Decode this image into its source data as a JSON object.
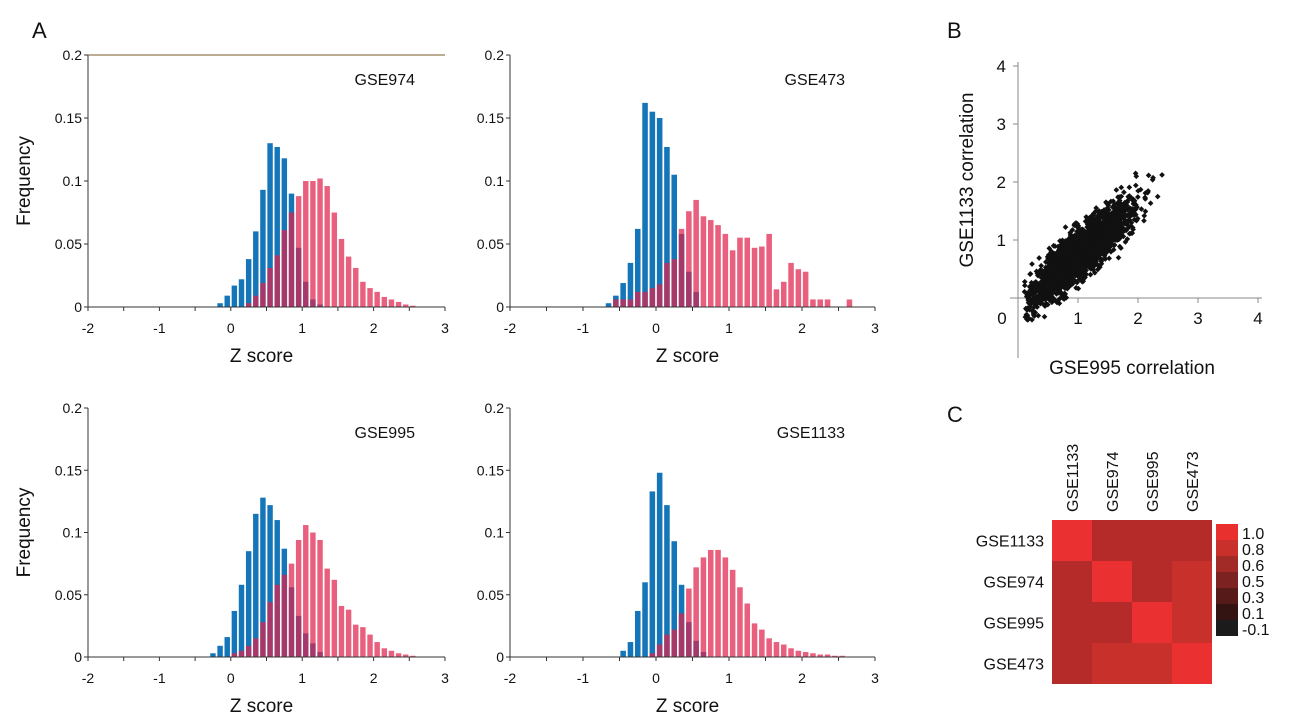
{
  "panel_letters": {
    "a": "A",
    "b": "B",
    "c": "C"
  },
  "colors": {
    "blue": "#1475b8",
    "red": "#e0234c",
    "overlap": "#6a3a72",
    "axis": "#333333",
    "point": "#111111"
  },
  "chart_data": [
    {
      "id": "hist-gse974",
      "type": "bar",
      "label": "GSE974",
      "xlabel": "Z score",
      "ylabel": "Frequency",
      "xlim": [
        -2,
        3
      ],
      "ylim": [
        0,
        0.2
      ],
      "xticks": [
        "-2",
        "-1",
        "0",
        "1",
        "2",
        "3"
      ],
      "yticks": [
        "0",
        "0.05",
        "0.1",
        "0.15",
        "0.2"
      ],
      "bin_width": 0.1,
      "series": [
        {
          "color": "blue",
          "x": [
            -0.15,
            -0.05,
            0.05,
            0.15,
            0.25,
            0.35,
            0.45,
            0.55,
            0.65,
            0.75,
            0.85,
            0.95,
            1.05,
            1.15,
            1.25
          ],
          "values": [
            0.003,
            0.009,
            0.017,
            0.022,
            0.038,
            0.06,
            0.093,
            0.13,
            0.127,
            0.118,
            0.09,
            0.047,
            0.02,
            0.006,
            0.002
          ]
        },
        {
          "color": "red",
          "x": [
            0.25,
            0.35,
            0.45,
            0.55,
            0.65,
            0.75,
            0.85,
            0.95,
            1.05,
            1.15,
            1.25,
            1.35,
            1.45,
            1.55,
            1.65,
            1.75,
            1.85,
            1.95,
            2.05,
            2.15,
            2.25,
            2.35,
            2.45,
            2.55
          ],
          "values": [
            0.003,
            0.009,
            0.019,
            0.031,
            0.041,
            0.061,
            0.075,
            0.088,
            0.1,
            0.1,
            0.102,
            0.096,
            0.075,
            0.054,
            0.04,
            0.031,
            0.02,
            0.015,
            0.012,
            0.008,
            0.006,
            0.004,
            0.002,
            0.001
          ]
        }
      ]
    },
    {
      "id": "hist-gse473",
      "type": "bar",
      "label": "GSE473",
      "xlabel": "Z score",
      "ylabel": "",
      "xlim": [
        -2,
        3
      ],
      "ylim": [
        0,
        0.2
      ],
      "xticks": [
        "-2",
        "-1",
        "0",
        "1",
        "2",
        "3"
      ],
      "yticks": [
        "0",
        "0.05",
        "0.1",
        "0.15",
        "0.2"
      ],
      "bin_width": 0.1,
      "series": [
        {
          "color": "blue",
          "x": [
            -0.65,
            -0.55,
            -0.45,
            -0.35,
            -0.25,
            -0.15,
            -0.05,
            0.05,
            0.15,
            0.25,
            0.35,
            0.45,
            0.55
          ],
          "values": [
            0.003,
            0.009,
            0.019,
            0.035,
            0.062,
            0.162,
            0.155,
            0.15,
            0.127,
            0.105,
            0.058,
            0.028,
            0.012
          ]
        },
        {
          "color": "red",
          "x": [
            -0.55,
            -0.45,
            -0.35,
            -0.25,
            -0.15,
            -0.05,
            0.05,
            0.15,
            0.25,
            0.35,
            0.45,
            0.55,
            0.65,
            0.75,
            0.85,
            0.95,
            1.05,
            1.15,
            1.25,
            1.35,
            1.45,
            1.55,
            1.65,
            1.75,
            1.85,
            1.95,
            2.05,
            2.15,
            2.25,
            2.35,
            2.65
          ],
          "values": [
            0.006,
            0.006,
            0.006,
            0.012,
            0.012,
            0.015,
            0.018,
            0.035,
            0.038,
            0.062,
            0.076,
            0.085,
            0.072,
            0.069,
            0.065,
            0.058,
            0.045,
            0.055,
            0.055,
            0.047,
            0.048,
            0.058,
            0.014,
            0.02,
            0.035,
            0.03,
            0.028,
            0.006,
            0.006,
            0.006,
            0.006
          ]
        }
      ]
    },
    {
      "id": "hist-gse995",
      "type": "bar",
      "label": "GSE995",
      "xlabel": "Z score",
      "ylabel": "Frequency",
      "xlim": [
        -2,
        3
      ],
      "ylim": [
        0,
        0.2
      ],
      "xticks": [
        "-2",
        "-1",
        "0",
        "1",
        "2",
        "3"
      ],
      "yticks": [
        "0",
        "0.05",
        "0.1",
        "0.15",
        "0.2"
      ],
      "bin_width": 0.1,
      "series": [
        {
          "color": "blue",
          "x": [
            -0.25,
            -0.15,
            -0.05,
            0.05,
            0.15,
            0.25,
            0.35,
            0.45,
            0.55,
            0.65,
            0.75,
            0.85,
            0.95,
            1.05,
            1.15,
            1.25
          ],
          "values": [
            0.003,
            0.009,
            0.016,
            0.037,
            0.058,
            0.085,
            0.115,
            0.128,
            0.122,
            0.11,
            0.087,
            0.056,
            0.033,
            0.019,
            0.011,
            0.004
          ]
        },
        {
          "color": "red",
          "x": [
            0.05,
            0.15,
            0.25,
            0.35,
            0.45,
            0.55,
            0.65,
            0.75,
            0.85,
            0.95,
            1.05,
            1.15,
            1.25,
            1.35,
            1.45,
            1.55,
            1.65,
            1.75,
            1.85,
            1.95,
            2.05,
            2.15,
            2.25,
            2.35,
            2.45,
            2.55
          ],
          "values": [
            0.003,
            0.005,
            0.009,
            0.015,
            0.028,
            0.044,
            0.058,
            0.066,
            0.075,
            0.094,
            0.106,
            0.1,
            0.094,
            0.071,
            0.062,
            0.041,
            0.038,
            0.026,
            0.024,
            0.018,
            0.012,
            0.007,
            0.005,
            0.003,
            0.002,
            0.001
          ]
        }
      ]
    },
    {
      "id": "hist-gse1133",
      "type": "bar",
      "label": "GSE1133",
      "xlabel": "Z score",
      "ylabel": "",
      "xlim": [
        -2,
        3
      ],
      "ylim": [
        0,
        0.2
      ],
      "xticks": [
        "-2",
        "-1",
        "0",
        "1",
        "2",
        "3"
      ],
      "yticks": [
        "0",
        "0.05",
        "0.1",
        "0.15",
        "0.2"
      ],
      "bin_width": 0.1,
      "series": [
        {
          "color": "blue",
          "x": [
            -0.45,
            -0.35,
            -0.25,
            -0.15,
            -0.05,
            0.05,
            0.15,
            0.25,
            0.35,
            0.45,
            0.55,
            0.65
          ],
          "values": [
            0.005,
            0.012,
            0.037,
            0.06,
            0.133,
            0.148,
            0.122,
            0.093,
            0.058,
            0.028,
            0.013,
            0.004
          ]
        },
        {
          "color": "red",
          "x": [
            -0.05,
            0.05,
            0.15,
            0.25,
            0.35,
            0.45,
            0.55,
            0.65,
            0.75,
            0.85,
            0.95,
            1.05,
            1.15,
            1.25,
            1.35,
            1.45,
            1.55,
            1.65,
            1.75,
            1.85,
            1.95,
            2.05,
            2.15,
            2.25,
            2.35,
            2.45,
            2.55
          ],
          "values": [
            0.003,
            0.01,
            0.018,
            0.022,
            0.035,
            0.055,
            0.072,
            0.08,
            0.086,
            0.086,
            0.08,
            0.07,
            0.056,
            0.043,
            0.027,
            0.022,
            0.015,
            0.012,
            0.01,
            0.007,
            0.005,
            0.004,
            0.003,
            0.002,
            0.002,
            0.001,
            0.001
          ]
        }
      ]
    },
    {
      "id": "scatter-b",
      "type": "scatter",
      "xlabel": "GSE995 correlation",
      "ylabel": "GSE1133 correlation",
      "xlim": [
        0,
        4
      ],
      "ylim": [
        0,
        4
      ],
      "xticks": [
        "0",
        "1",
        "2",
        "3",
        "4"
      ],
      "yticks": [
        "1",
        "2",
        "3",
        "4"
      ],
      "point_count": 2500,
      "trend": {
        "slope": 0.9,
        "intercept": -0.15
      },
      "x_range": [
        0.1,
        3.3
      ],
      "spread": 0.38
    },
    {
      "id": "heatmap-c",
      "type": "heatmap",
      "rows": [
        "GSE1133",
        "GSE974",
        "GSE995",
        "GSE473"
      ],
      "columns": [
        "GSE1133",
        "GSE974",
        "GSE995",
        "GSE473"
      ],
      "values": [
        [
          1.0,
          0.6,
          0.6,
          0.58
        ],
        [
          0.6,
          1.0,
          0.62,
          0.72
        ],
        [
          0.6,
          0.62,
          1.0,
          0.7
        ],
        [
          0.58,
          0.72,
          0.7,
          1.0
        ]
      ],
      "colorbar": {
        "labels": [
          "1.0",
          "0.8",
          "0.6",
          "0.5",
          "0.3",
          "0.1",
          "-0.1"
        ],
        "colors": [
          "#e8312f",
          "#c9302c",
          "#a22a27",
          "#7c2321",
          "#561b19",
          "#341412",
          "#1c1b1b"
        ]
      }
    }
  ]
}
